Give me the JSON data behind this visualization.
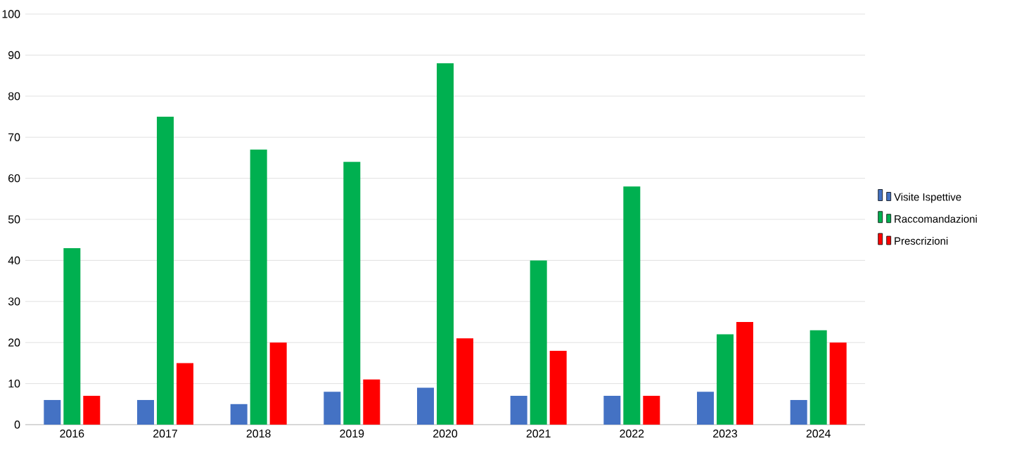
{
  "chart_data": {
    "type": "bar",
    "categories": [
      "2016",
      "2017",
      "2018",
      "2019",
      "2020",
      "2021",
      "2022",
      "2023",
      "2024"
    ],
    "series": [
      {
        "name": "Visite Ispettive",
        "color": "#4472c4",
        "values": [
          6,
          6,
          5,
          8,
          9,
          7,
          7,
          8,
          6
        ]
      },
      {
        "name": "Raccomandazioni",
        "color": "#00b050",
        "values": [
          43,
          75,
          67,
          64,
          88,
          40,
          58,
          22,
          23
        ]
      },
      {
        "name": "Prescrizioni",
        "color": "#ff0000",
        "values": [
          7,
          15,
          20,
          11,
          21,
          18,
          7,
          25,
          20
        ]
      }
    ],
    "ylim": [
      0,
      100
    ],
    "yticks": [
      0,
      10,
      20,
      30,
      40,
      50,
      60,
      70,
      80,
      90,
      100
    ],
    "grid": "y",
    "legend": "right"
  }
}
